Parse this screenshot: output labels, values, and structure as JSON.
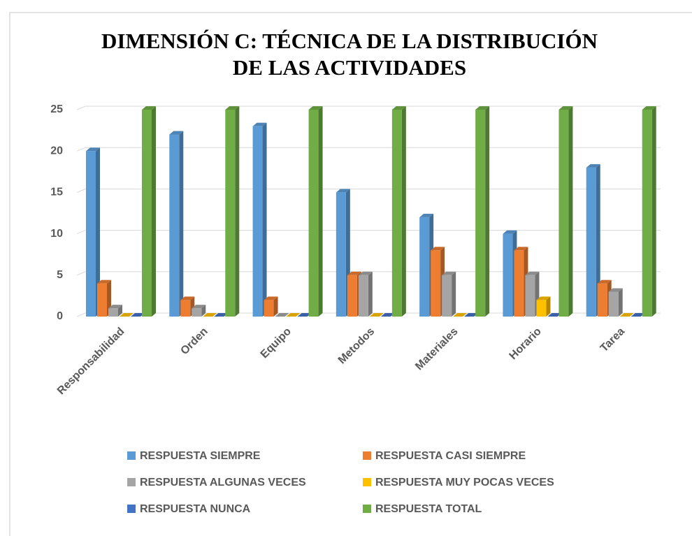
{
  "chart_data": {
    "type": "bar3d",
    "title": [
      "DIMENSIÓN C: TÉCNICA DE LA DISTRIBUCIÓN",
      "DE LAS ACTIVIDADES"
    ],
    "categories": [
      "Responsabilidad",
      "Orden",
      "Equipo",
      "Metodos",
      "Materiales",
      "Horario",
      "Tarea"
    ],
    "series": [
      {
        "name": "RESPUESTA SIEMPRE",
        "color": "#5b9bd5",
        "values": [
          20,
          22,
          23,
          15,
          12,
          10,
          18
        ]
      },
      {
        "name": "RESPUESTA CASI SIEMPRE",
        "color": "#ed7d31",
        "values": [
          4,
          2,
          2,
          5,
          8,
          8,
          4
        ]
      },
      {
        "name": "RESPUESTA ALGUNAS VECES",
        "color": "#a5a5a5",
        "values": [
          1,
          1,
          0,
          5,
          5,
          5,
          3
        ]
      },
      {
        "name": "RESPUESTA MUY POCAS VECES",
        "color": "#ffc000",
        "values": [
          0,
          0,
          0,
          0,
          0,
          2,
          0
        ]
      },
      {
        "name": "RESPUESTA NUNCA",
        "color": "#4472c4",
        "values": [
          0,
          0,
          0,
          0,
          0,
          0,
          0
        ]
      },
      {
        "name": "RESPUESTA TOTAL",
        "color": "#70ad47",
        "values": [
          25,
          25,
          25,
          25,
          25,
          25,
          25
        ]
      }
    ],
    "ylim": [
      0,
      25
    ],
    "yticks": [
      0,
      5,
      10,
      15,
      20,
      25
    ],
    "grid": true,
    "legend": "bottom"
  }
}
